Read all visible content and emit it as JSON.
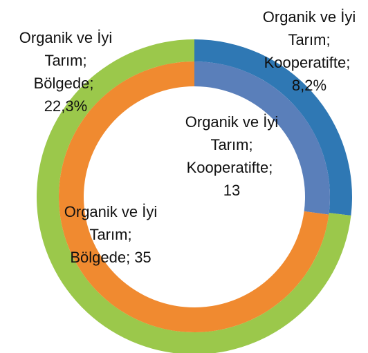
{
  "chart_data": {
    "type": "doughnut",
    "categories": [
      "Kooperatifte",
      "Bölgede"
    ],
    "label_separator": ";",
    "series": [
      {
        "name": "Organik ve İyi Tarım",
        "ring": "outer",
        "colors": [
          "#2f78b4",
          "#9bc84b"
        ],
        "values": [
          8.2,
          22.3
        ],
        "value_labels": [
          "8,2%",
          "22,3%"
        ]
      },
      {
        "name": "Organik ve İyi Tarım",
        "ring": "inner",
        "colors": [
          "#5a7fba",
          "#f08a30"
        ],
        "values": [
          13,
          35
        ]
      }
    ]
  }
}
